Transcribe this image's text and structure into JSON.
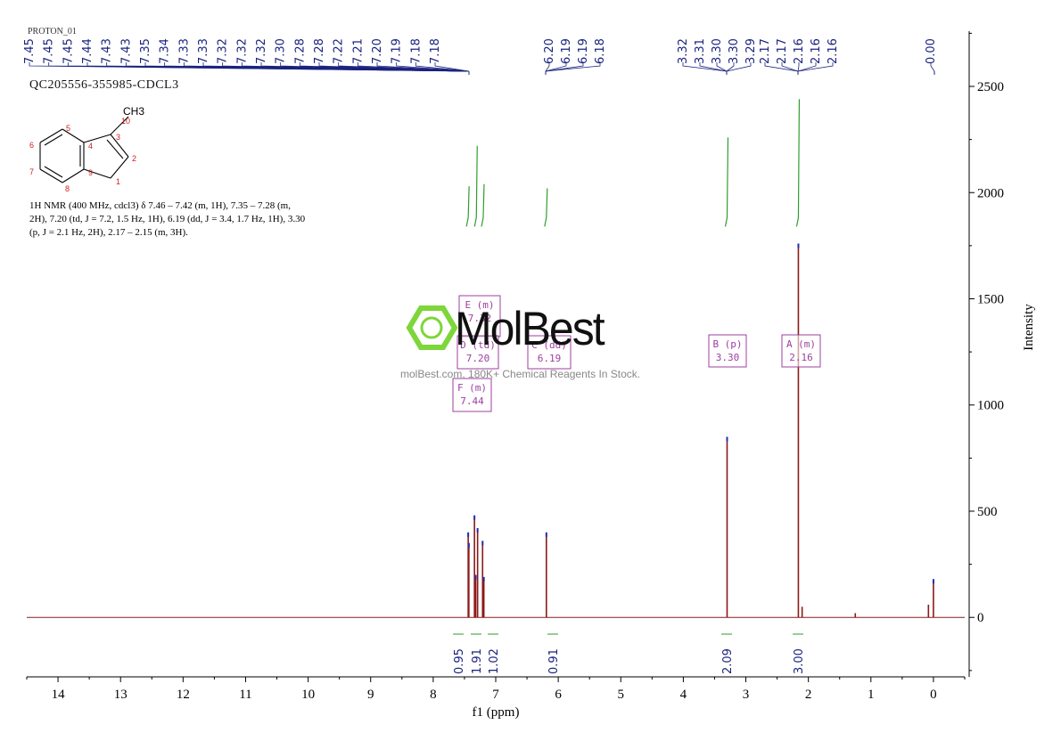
{
  "header": {
    "experiment": "PROTON_01",
    "sample_id": "QC205556-355985-CDCL3"
  },
  "structure": {
    "methyl_label": "CH3",
    "atom_numbers": [
      "1",
      "2",
      "3",
      "4",
      "5",
      "6",
      "7",
      "8",
      "9",
      "10"
    ]
  },
  "nmr_description": "1H NMR (400 MHz, cdcl3) δ 7.46 – 7.42 (m, 1H), 7.35 – 7.28 (m, 2H), 7.20 (td, J = 7.2, 1.5 Hz, 1H), 6.19 (dd, J = 3.4, 1.7 Hz, 1H), 3.30 (p, J = 2.1 Hz, 2H), 2.17 – 2.15 (m, 3H).",
  "watermark": {
    "name": "MolBest",
    "tagline": "molBest.com, 180K+ Chemical Reagents In Stock."
  },
  "chart_data": {
    "type": "line",
    "xlabel": "f1 (ppm)",
    "ylabel": "Intensity",
    "xlim": [
      14.5,
      -0.5
    ],
    "ylim": [
      -280,
      2760
    ],
    "xticks": [
      14,
      13,
      12,
      11,
      10,
      9,
      8,
      7,
      6,
      5,
      4,
      3,
      2,
      1,
      0
    ],
    "yticks": [
      0,
      500,
      1000,
      1500,
      2000,
      2500
    ],
    "peak_labels": [
      {
        "group": "7.5–7.2",
        "labels": [
          "7.45",
          "7.45",
          "7.45",
          "7.44",
          "7.43",
          "7.43",
          "7.35",
          "7.34",
          "7.33",
          "7.33",
          "7.32",
          "7.32",
          "7.32",
          "7.30",
          "7.28",
          "7.28",
          "7.22",
          "7.21",
          "7.20",
          "7.19",
          "7.18",
          "7.18"
        ],
        "anchor": 7.3
      },
      {
        "group": "6.19",
        "labels": [
          "6.20",
          "6.19",
          "6.19",
          "6.18"
        ],
        "anchor": 6.19
      },
      {
        "group": "3.30",
        "labels": [
          "3.32",
          "3.31",
          "3.30",
          "3.30",
          "3.29"
        ],
        "anchor": 3.3
      },
      {
        "group": "2.16",
        "labels": [
          "2.17",
          "2.17",
          "2.16",
          "2.16",
          "2.16"
        ],
        "anchor": 2.16
      },
      {
        "group": "0.00",
        "labels": [
          "0.00"
        ],
        "anchor": 0.0
      }
    ],
    "peaks": [
      {
        "ppm": 7.44,
        "height": 400
      },
      {
        "ppm": 7.43,
        "height": 350
      },
      {
        "ppm": 7.34,
        "height": 480
      },
      {
        "ppm": 7.32,
        "height": 200
      },
      {
        "ppm": 7.29,
        "height": 420
      },
      {
        "ppm": 7.21,
        "height": 360
      },
      {
        "ppm": 7.19,
        "height": 190
      },
      {
        "ppm": 6.19,
        "height": 400
      },
      {
        "ppm": 3.3,
        "height": 850
      },
      {
        "ppm": 2.16,
        "height": 1760
      },
      {
        "ppm": 2.1,
        "height": 50
      },
      {
        "ppm": 1.25,
        "height": 20
      },
      {
        "ppm": 0.08,
        "height": 60
      },
      {
        "ppm": 0.0,
        "height": 180
      }
    ],
    "integrals": [
      {
        "value": "0.95",
        "ppm": 7.44,
        "curve_height": 2030
      },
      {
        "value": "1.91",
        "ppm": 7.31,
        "curve_height": 2220
      },
      {
        "value": "1.02",
        "ppm": 7.2,
        "curve_height": 2040
      },
      {
        "value": "0.91",
        "ppm": 6.19,
        "curve_height": 2020
      },
      {
        "value": "2.09",
        "ppm": 3.3,
        "curve_height": 2260
      },
      {
        "value": "3.00",
        "ppm": 2.16,
        "curve_height": 2440
      }
    ],
    "multiplets": [
      {
        "letter": "E",
        "type": "(m)",
        "shift": "7.32"
      },
      {
        "letter": "D",
        "type": "(td)",
        "shift": "7.20"
      },
      {
        "letter": "C",
        "type": "(dd)",
        "shift": "6.19"
      },
      {
        "letter": "F",
        "type": "(m)",
        "shift": "7.44"
      },
      {
        "letter": "B",
        "type": "(p)",
        "shift": "3.30"
      },
      {
        "letter": "A",
        "type": "(m)",
        "shift": "2.16"
      }
    ],
    "colors": {
      "spectrum": "#8b1a1a",
      "integral": "#2e9e2e",
      "peak_label": "#1a237e",
      "multiplet_box": "#9c3fa0",
      "integral_value": "#1a237e"
    }
  }
}
